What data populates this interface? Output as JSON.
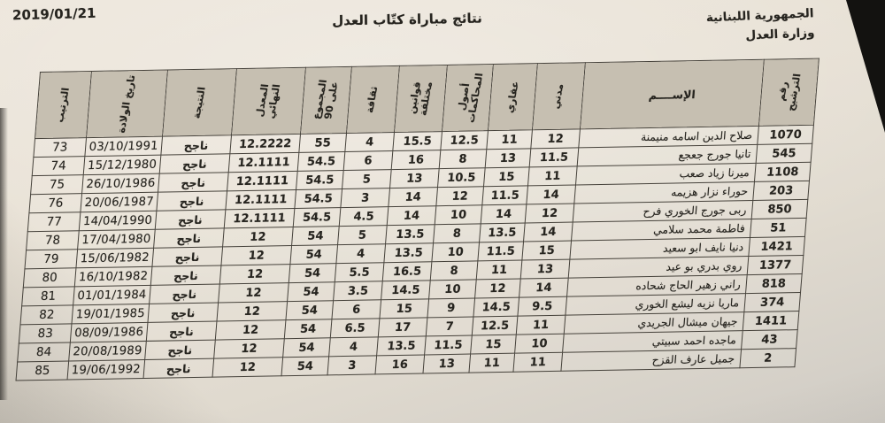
{
  "page": {
    "date": "2019/01/21",
    "title": "نتائج مباراة كتّاب العدل",
    "org_line1": "الجمهورية اللبنانية",
    "org_line2": "وزارة العدل"
  },
  "table": {
    "headers": {
      "rank": "الترتيب",
      "dob": "تاريخ الولادة",
      "result": "النتيجة",
      "average": "المعدل النهائي",
      "total": "المجموع\nعلى 90",
      "culture": "ثقافة",
      "laws": "قوانين مختلفة",
      "procedures": "أصول\nالمحاكمات",
      "real_estate": "عقاري",
      "civil": "مدني",
      "name": "الإســــم",
      "number": "رقم الترشيح"
    },
    "rows": [
      {
        "rank": "73",
        "dob": "03/10/1991",
        "result": "ناجح",
        "average": "12.2222",
        "total": "55",
        "culture": "4",
        "laws": "15.5",
        "procedures": "12.5",
        "real_estate": "11",
        "civil": "12",
        "name": "صلاح الدين اسامه منيمنة",
        "number": "1070"
      },
      {
        "rank": "74",
        "dob": "15/12/1980",
        "result": "ناجح",
        "average": "12.1111",
        "total": "54.5",
        "culture": "6",
        "laws": "16",
        "procedures": "8",
        "real_estate": "13",
        "civil": "11.5",
        "name": "تانيا جورج جعجع",
        "number": "545"
      },
      {
        "rank": "75",
        "dob": "26/10/1986",
        "result": "ناجح",
        "average": "12.1111",
        "total": "54.5",
        "culture": "5",
        "laws": "13",
        "procedures": "10.5",
        "real_estate": "15",
        "civil": "11",
        "name": "ميرنا زياد صعب",
        "number": "1108"
      },
      {
        "rank": "76",
        "dob": "20/06/1987",
        "result": "ناجح",
        "average": "12.1111",
        "total": "54.5",
        "culture": "3",
        "laws": "14",
        "procedures": "12",
        "real_estate": "11.5",
        "civil": "14",
        "name": "حوراء نزار هزيمه",
        "number": "203"
      },
      {
        "rank": "77",
        "dob": "14/04/1990",
        "result": "ناجح",
        "average": "12.1111",
        "total": "54.5",
        "culture": "4.5",
        "laws": "14",
        "procedures": "10",
        "real_estate": "14",
        "civil": "12",
        "name": "ربى جورج الخوري فرح",
        "number": "850"
      },
      {
        "rank": "78",
        "dob": "17/04/1980",
        "result": "ناجح",
        "average": "12",
        "total": "54",
        "culture": "5",
        "laws": "13.5",
        "procedures": "8",
        "real_estate": "13.5",
        "civil": "14",
        "name": "فاطمة محمد سلامي",
        "number": "51"
      },
      {
        "rank": "79",
        "dob": "15/06/1982",
        "result": "ناجح",
        "average": "12",
        "total": "54",
        "culture": "4",
        "laws": "13.5",
        "procedures": "10",
        "real_estate": "11.5",
        "civil": "15",
        "name": "دنيا نايف ابو سعيد",
        "number": "1421"
      },
      {
        "rank": "80",
        "dob": "16/10/1982",
        "result": "ناجح",
        "average": "12",
        "total": "54",
        "culture": "5.5",
        "laws": "16.5",
        "procedures": "8",
        "real_estate": "11",
        "civil": "13",
        "name": "روي بدري بو عيد",
        "number": "1377"
      },
      {
        "rank": "81",
        "dob": "01/01/1984",
        "result": "ناجح",
        "average": "12",
        "total": "54",
        "culture": "3.5",
        "laws": "14.5",
        "procedures": "10",
        "real_estate": "12",
        "civil": "14",
        "name": "راني زهير الحاج شحاده",
        "number": "818"
      },
      {
        "rank": "82",
        "dob": "19/01/1985",
        "result": "ناجح",
        "average": "12",
        "total": "54",
        "culture": "6",
        "laws": "15",
        "procedures": "9",
        "real_estate": "14.5",
        "civil": "9.5",
        "name": "ماريا نزيه ليشع الخوري",
        "number": "374"
      },
      {
        "rank": "83",
        "dob": "08/09/1986",
        "result": "ناجح",
        "average": "12",
        "total": "54",
        "culture": "6.5",
        "laws": "17",
        "procedures": "7",
        "real_estate": "12.5",
        "civil": "11",
        "name": "جيهان ميشال الجريدي",
        "number": "1411"
      },
      {
        "rank": "84",
        "dob": "20/08/1989",
        "result": "ناجح",
        "average": "12",
        "total": "54",
        "culture": "4",
        "laws": "13.5",
        "procedures": "11.5",
        "real_estate": "15",
        "civil": "10",
        "name": "ماجده احمد سبيتي",
        "number": "43"
      },
      {
        "rank": "85",
        "dob": "19/06/1992",
        "result": "ناجح",
        "average": "12",
        "total": "54",
        "culture": "3",
        "laws": "16",
        "procedures": "13",
        "real_estate": "11",
        "civil": "11",
        "name": "جميل عارف القزح",
        "number": "2"
      }
    ]
  }
}
